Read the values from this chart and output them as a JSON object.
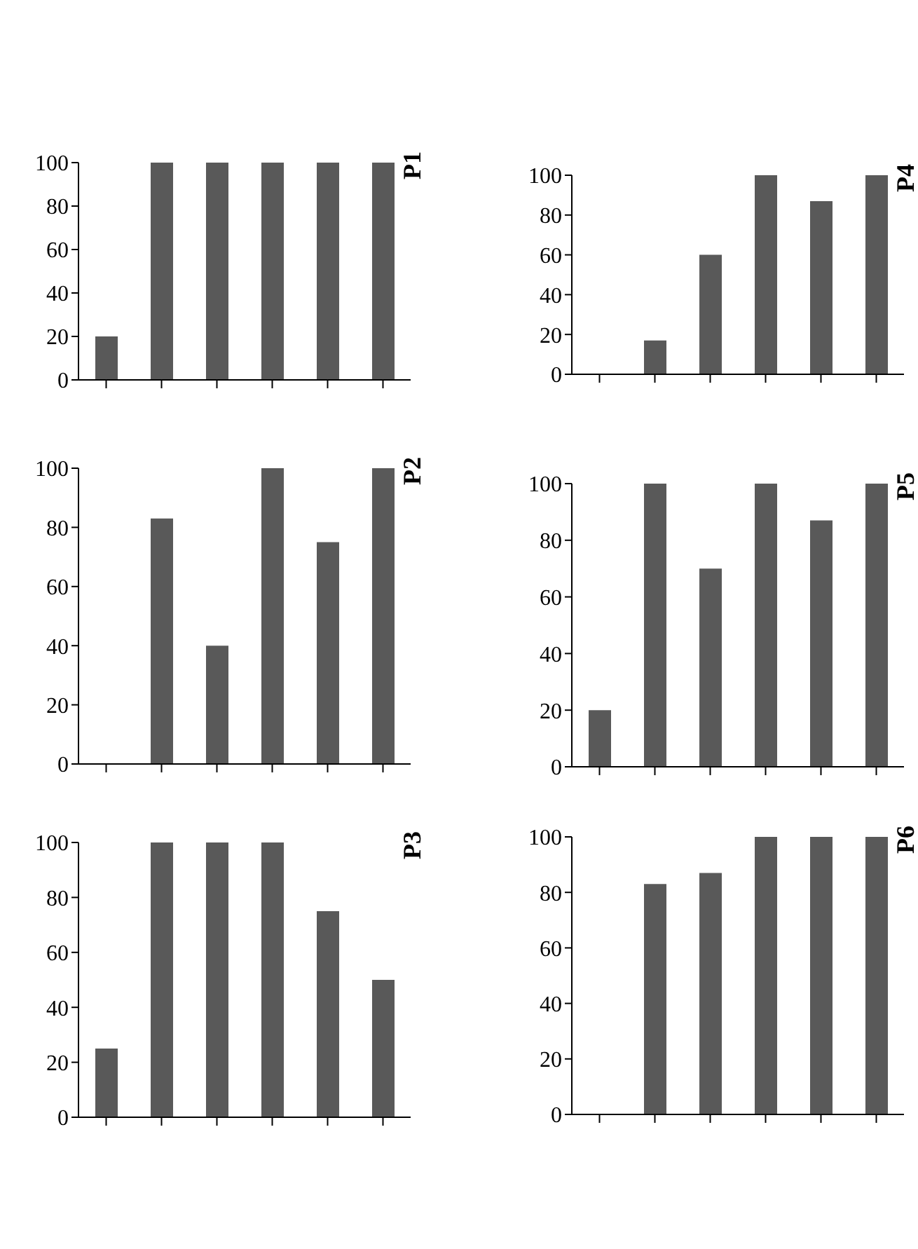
{
  "chart_data": [
    {
      "type": "bar",
      "title": "P1",
      "categories": [
        null,
        null,
        null,
        null,
        null,
        null
      ],
      "values": [
        20,
        100,
        100,
        100,
        100,
        100
      ],
      "color": "#595959",
      "ylim": [
        0,
        100
      ],
      "yticks": [
        0,
        20,
        40,
        60,
        80,
        100
      ],
      "tick_labels": "y"
    },
    {
      "type": "bar",
      "title": "P4",
      "categories": [
        null,
        null,
        null,
        null,
        null,
        null
      ],
      "values": [
        0,
        17,
        60,
        100,
        87,
        100
      ],
      "color": "#595959",
      "ylim": [
        0,
        100
      ],
      "yticks": [
        0,
        20,
        40,
        60,
        80,
        100
      ],
      "tick_labels": "y"
    },
    {
      "type": "bar",
      "title": "P2",
      "categories": [
        null,
        null,
        null,
        null,
        null,
        null
      ],
      "values": [
        0,
        83,
        40,
        100,
        75,
        100
      ],
      "color": "#595959",
      "ylim": [
        0,
        100
      ],
      "yticks": [
        0,
        20,
        40,
        60,
        80,
        100
      ],
      "tick_labels": "y"
    },
    {
      "type": "bar",
      "title": "P5",
      "categories": [
        null,
        null,
        null,
        null,
        null,
        null
      ],
      "values": [
        20,
        100,
        70,
        100,
        87,
        100
      ],
      "color": "#595959",
      "ylim": [
        0,
        100
      ],
      "yticks": [
        0,
        20,
        40,
        60,
        80,
        100
      ],
      "tick_labels": "y"
    },
    {
      "type": "bar",
      "title": "P3",
      "categories": [
        null,
        null,
        null,
        null,
        null,
        null
      ],
      "values": [
        25,
        100,
        100,
        100,
        75,
        50
      ],
      "color": "#595959",
      "ylim": [
        0,
        100
      ],
      "yticks": [
        0,
        20,
        40,
        60,
        80,
        100
      ],
      "tick_labels": "y"
    },
    {
      "type": "bar",
      "title": "P6",
      "categories": [
        null,
        null,
        null,
        null,
        null,
        null
      ],
      "values": [
        0,
        83,
        87,
        100,
        100,
        100
      ],
      "color": "#595959",
      "ylim": [
        0,
        100
      ],
      "yticks": [
        0,
        20,
        40,
        60,
        80,
        100
      ],
      "tick_labels": "y"
    }
  ]
}
